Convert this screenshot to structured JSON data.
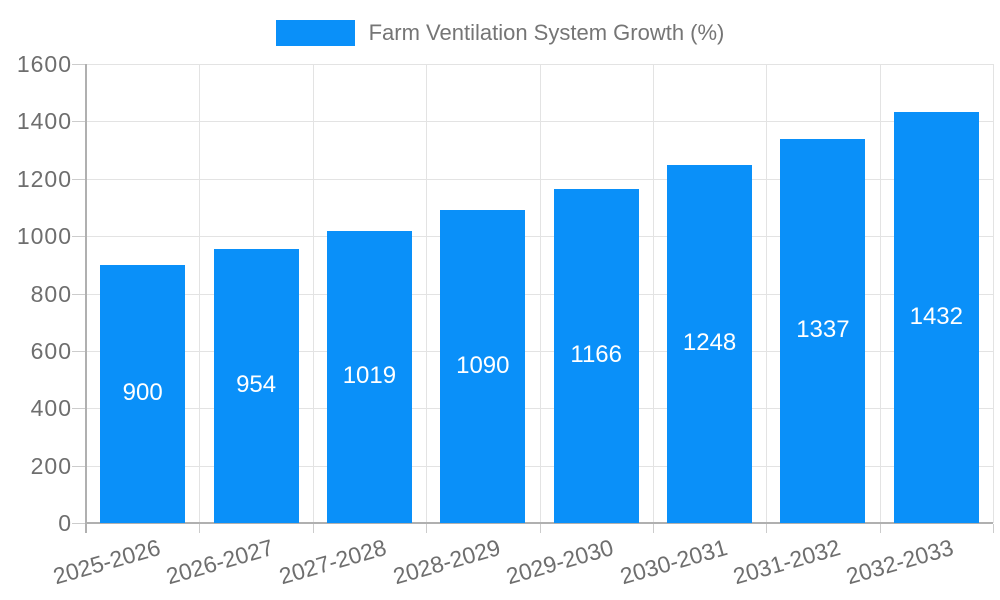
{
  "chart_data": {
    "type": "bar",
    "title": "Farm Ventilation System Growth (%)",
    "series_name": "Farm Ventilation System Growth (%)",
    "categories": [
      "2025-2026",
      "2026-2027",
      "2027-2028",
      "2028-2029",
      "2029-2030",
      "2030-2031",
      "2031-2032",
      "2032-2033"
    ],
    "values": [
      900,
      954,
      1019,
      1090,
      1166,
      1248,
      1337,
      1432
    ],
    "xlabel": "",
    "ylabel": "",
    "ylim": [
      0,
      1600
    ],
    "ytick_step": 200,
    "yticks": [
      0,
      200,
      400,
      600,
      800,
      1000,
      1200,
      1400,
      1600
    ],
    "grid": true,
    "legend_position": "top-center",
    "value_label_position": "inside-center",
    "colors": {
      "bar": "#0A90F9",
      "grid": "#E3E3E3",
      "axis": "#B0B0B0",
      "tick": "#CCCCCC",
      "axis_text": "#6E6E6E",
      "legend_text": "#757575",
      "value_label_text": "#FFFFFF",
      "background": "#FFFFFF"
    }
  }
}
